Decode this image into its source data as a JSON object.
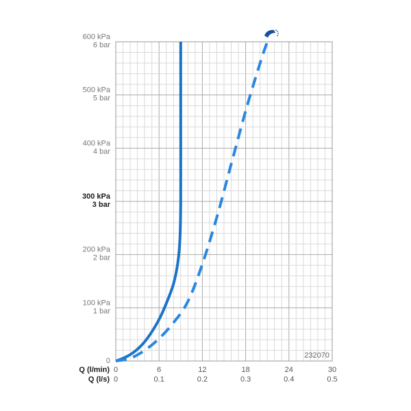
{
  "chart_data": {
    "type": "line",
    "code_label": "232070",
    "x_axis_labels": [
      "Q (l/min)",
      "Q (l/s)"
    ],
    "x_ticks_lmin": [
      "0",
      "6",
      "12",
      "18",
      "24",
      "30"
    ],
    "x_ticks_ls": [
      "0",
      "0.1",
      "0.2",
      "0.3",
      "0.4",
      "0.5"
    ],
    "y_ticks": [
      {
        "kpa": "100 kPa",
        "bar": "1 bar",
        "value": 100,
        "bold": false
      },
      {
        "kpa": "200 kPa",
        "bar": "2 bar",
        "value": 200,
        "bold": false
      },
      {
        "kpa": "300 kPa",
        "bar": "3 bar",
        "value": 300,
        "bold": true
      },
      {
        "kpa": "400 kPa",
        "bar": "4 bar",
        "value": 400,
        "bold": false
      },
      {
        "kpa": "500 kPa",
        "bar": "5 bar",
        "value": 500,
        "bold": false
      },
      {
        "kpa": "600 kPa",
        "bar": "6 bar",
        "value": 600,
        "bold": false
      }
    ],
    "x_zero_label": "0",
    "xlim": [
      0,
      30
    ],
    "ylim": [
      0,
      600
    ],
    "grid": true,
    "icon": "shower-head-icon",
    "series": [
      {
        "style": "solid",
        "color": "#1a73c8",
        "x": [
          0,
          1,
          2,
          3,
          4,
          5,
          6,
          7,
          8,
          8.6,
          8.9,
          9.0,
          9.0,
          9.0
        ],
        "y": [
          0,
          5,
          12,
          22,
          36,
          55,
          78,
          108,
          145,
          185,
          230,
          300,
          450,
          600
        ]
      },
      {
        "style": "dashed",
        "color": "#2a86e0",
        "x": [
          0,
          2,
          4,
          6,
          8,
          10,
          12,
          14,
          16,
          18,
          20,
          21
        ],
        "y": [
          0,
          5,
          20,
          42,
          72,
          112,
          182,
          270,
          370,
          470,
          560,
          600
        ]
      }
    ]
  }
}
